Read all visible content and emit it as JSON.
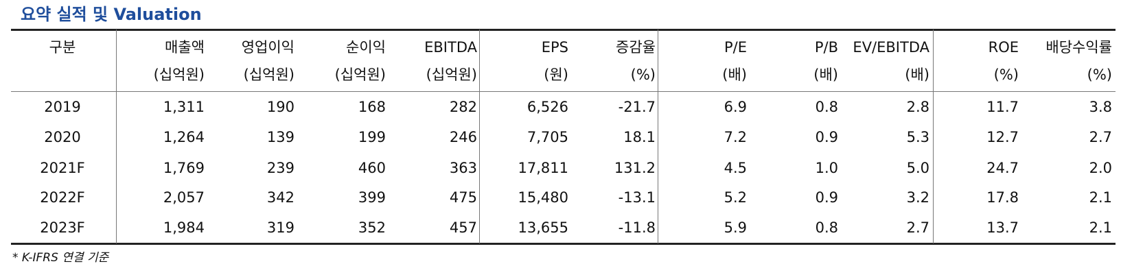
{
  "title": "요약 실적 및 Valuation",
  "table": {
    "header": [
      {
        "label": "구분"
      },
      {
        "label": "매출액",
        "unit": "(십억원)"
      },
      {
        "label": "영업이익",
        "unit": "(십억원)"
      },
      {
        "label": "순이익",
        "unit": "(십억원)"
      },
      {
        "label": "EBITDA",
        "unit": "(십억원)"
      },
      {
        "label": "EPS",
        "unit": "(원)"
      },
      {
        "label": "증감율",
        "unit": "(%)"
      },
      {
        "label": "P/E",
        "unit": "(배)"
      },
      {
        "label": "P/B",
        "unit": "(배)"
      },
      {
        "label": "EV/EBITDA",
        "unit": "(배)"
      },
      {
        "label": "ROE",
        "unit": "(%)"
      },
      {
        "label": "배당수익률",
        "unit": "(%)"
      }
    ],
    "rows": [
      [
        "2019",
        "1,311",
        "190",
        "168",
        "282",
        "6,526",
        "-21.7",
        "6.9",
        "0.8",
        "2.8",
        "11.7",
        "3.8"
      ],
      [
        "2020",
        "1,264",
        "139",
        "199",
        "246",
        "7,705",
        "18.1",
        "7.2",
        "0.9",
        "5.3",
        "12.7",
        "2.7"
      ],
      [
        "2021F",
        "1,769",
        "239",
        "460",
        "363",
        "17,811",
        "131.2",
        "4.5",
        "1.0",
        "5.0",
        "24.7",
        "2.0"
      ],
      [
        "2022F",
        "2,057",
        "342",
        "399",
        "475",
        "15,480",
        "-13.1",
        "5.2",
        "0.9",
        "3.2",
        "17.8",
        "2.1"
      ],
      [
        "2023F",
        "1,984",
        "319",
        "352",
        "457",
        "13,655",
        "-11.8",
        "5.9",
        "0.8",
        "2.7",
        "13.7",
        "2.1"
      ]
    ]
  },
  "footnote": "* K-IFRS 연결 기준"
}
